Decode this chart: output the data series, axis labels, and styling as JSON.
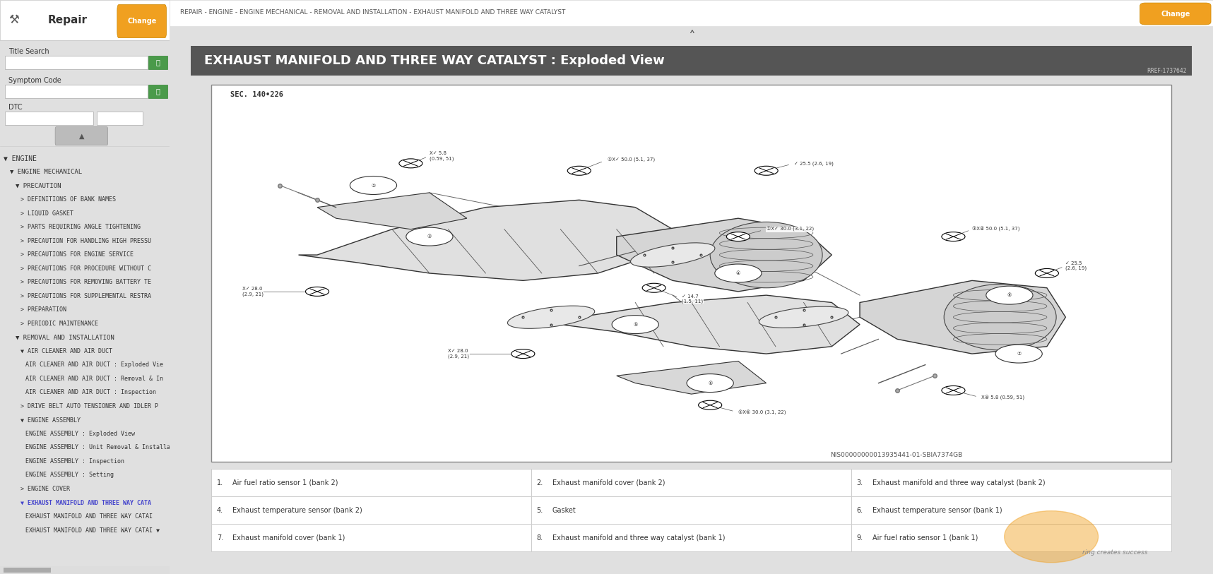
{
  "title": "EXHAUST MANIFOLD AND THREE WAY CATALYST : Exploded View",
  "title_bg": "#555555",
  "title_color": "#ffffff",
  "title_fontsize": 13,
  "breadcrumb": "REPAIR - ENGINE - ENGINE MECHANICAL - REMOVAL AND INSTALLATION - EXHAUST MANIFOLD AND THREE WAY CATALYST",
  "breadcrumb_fontsize": 7,
  "ref_code": "RREF-1737642",
  "diagram_id": "NIS00000000013935441-01-SBIA7374GB",
  "sec_label": "SEC. 140•226",
  "sidebar_bg": "#f0f0f0",
  "sidebar_title": "Repair",
  "change_btn_color": "#f0a020",
  "change_btn_text": "Change",
  "search_btn_color": "#4a9a4a",
  "main_bg": "#ffffff",
  "table_border_color": "#cccccc",
  "diagram_border_color": "#aaaaaa",
  "table_rows": [
    [
      "1.",
      "Air fuel ratio sensor 1 (bank 2)",
      "2.",
      "Exhaust manifold cover (bank 2)",
      "3.",
      "Exhaust manifold and three way catalyst (bank 2)"
    ],
    [
      "4.",
      "Exhaust temperature sensor (bank 2)",
      "5.",
      "Gasket",
      "6.",
      "Exhaust temperature sensor (bank 1)"
    ],
    [
      "7.",
      "Exhaust manifold cover (bank 1)",
      "8.",
      "Exhaust manifold and three way catalyst (bank 1)",
      "9.",
      "Air fuel ratio sensor 1 (bank 1)"
    ]
  ],
  "tree_items": [
    [
      0.02,
      "▼ ENGINE",
      7,
      "#333333",
      false
    ],
    [
      0.06,
      "▼ ENGINE MECHANICAL",
      6.5,
      "#333333",
      false
    ],
    [
      0.09,
      "▼ PRECAUTION",
      6.5,
      "#333333",
      false
    ],
    [
      0.12,
      "> DEFINITIONS OF BANK NAMES",
      6,
      "#333333",
      false
    ],
    [
      0.12,
      "> LIQUID GASKET",
      6,
      "#333333",
      false
    ],
    [
      0.12,
      "> PARTS REQUIRING ANGLE TIGHTENING",
      6,
      "#333333",
      false
    ],
    [
      0.12,
      "> PRECAUTION FOR HANDLING HIGH PRESSU",
      6,
      "#333333",
      false
    ],
    [
      0.12,
      "> PRECAUTIONS FOR ENGINE SERVICE",
      6,
      "#333333",
      false
    ],
    [
      0.12,
      "> PRECAUTIONS FOR PROCEDURE WITHOUT C",
      6,
      "#333333",
      false
    ],
    [
      0.12,
      "> PRECAUTIONS FOR REMOVING BATTERY TE",
      6,
      "#333333",
      false
    ],
    [
      0.12,
      "> PRECAUTIONS FOR SUPPLEMENTAL RESTRA",
      6,
      "#333333",
      false
    ],
    [
      0.12,
      "> PREPARATION",
      6,
      "#333333",
      false
    ],
    [
      0.12,
      "> PERIODIC MAINTENANCE",
      6,
      "#333333",
      false
    ],
    [
      0.09,
      "▼ REMOVAL AND INSTALLATION",
      6.5,
      "#333333",
      false
    ],
    [
      0.12,
      "▼ AIR CLEANER AND AIR DUCT",
      6,
      "#333333",
      false
    ],
    [
      0.15,
      "AIR CLEANER AND AIR DUCT : Exploded Vie",
      6,
      "#333333",
      false
    ],
    [
      0.15,
      "AIR CLEANER AND AIR DUCT : Removal & In",
      6,
      "#333333",
      false
    ],
    [
      0.15,
      "AIR CLEANER AND AIR DUCT : Inspection",
      6,
      "#333333",
      false
    ],
    [
      0.12,
      "> DRIVE BELT AUTO TENSIONER AND IDLER P",
      6,
      "#333333",
      false
    ],
    [
      0.12,
      "▼ ENGINE ASSEMBLY",
      6,
      "#333333",
      false
    ],
    [
      0.15,
      "ENGINE ASSEMBLY : Exploded View",
      6,
      "#333333",
      false
    ],
    [
      0.15,
      "ENGINE ASSEMBLY : Unit Removal & Installa",
      6,
      "#333333",
      false
    ],
    [
      0.15,
      "ENGINE ASSEMBLY : Inspection",
      6,
      "#333333",
      false
    ],
    [
      0.15,
      "ENGINE ASSEMBLY : Setting",
      6,
      "#333333",
      false
    ],
    [
      0.12,
      "> ENGINE COVER",
      6,
      "#333333",
      false
    ],
    [
      0.12,
      "▼ EXHAUST MANIFOLD AND THREE WAY CATA",
      6,
      "#4444cc",
      true
    ],
    [
      0.15,
      "EXHAUST MANIFOLD AND THREE WAY CATAI",
      6,
      "#333333",
      false
    ],
    [
      0.15,
      "EXHAUST MANIFOLD AND THREE WAY CATAI ▼",
      6,
      "#333333",
      false
    ]
  ]
}
